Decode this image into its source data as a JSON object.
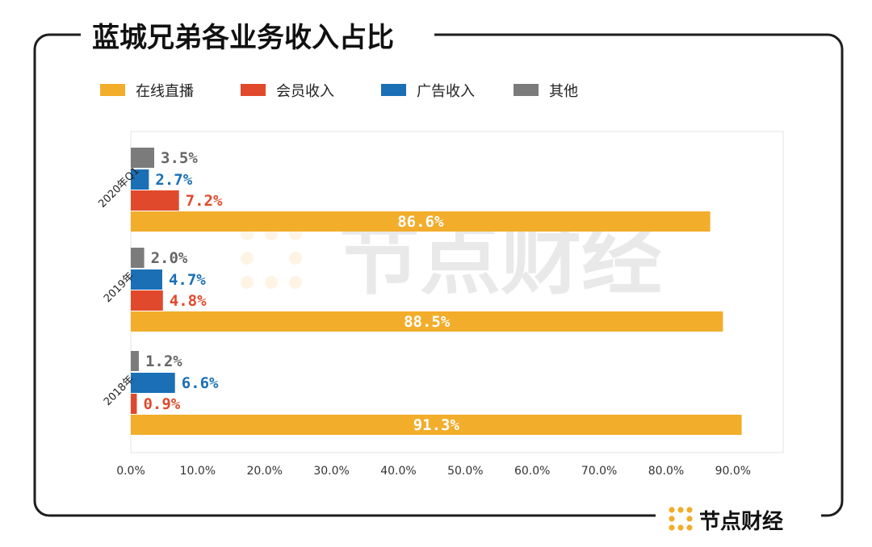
{
  "chart_data": {
    "type": "bar",
    "orientation": "horizontal",
    "title": "蓝城兄弟各业务收入占比",
    "categories": [
      "2020年Q1",
      "2019年",
      "2018年"
    ],
    "series": [
      {
        "name": "其他",
        "color": "#7b7b7b",
        "values": [
          3.5,
          2.0,
          1.2
        ],
        "labels": [
          "3.5%",
          "2.0%",
          "1.2%"
        ]
      },
      {
        "name": "广告收入",
        "color": "#1a6fb5",
        "values": [
          2.7,
          4.7,
          6.6
        ],
        "labels": [
          "2.7%",
          "4.7%",
          "6.6%"
        ]
      },
      {
        "name": "会员收入",
        "color": "#e0492b",
        "values": [
          7.2,
          4.8,
          0.9
        ],
        "labels": [
          "7.2%",
          "4.8%",
          "0.9%"
        ]
      },
      {
        "name": "在线直播",
        "color": "#f2ad2b",
        "values": [
          86.6,
          88.5,
          91.3
        ],
        "labels": [
          "86.6%",
          "88.5%",
          "91.3%"
        ]
      }
    ],
    "legend": {
      "position": "top-left",
      "items": [
        {
          "name": "在线直播",
          "color": "#f2ad2b"
        },
        {
          "name": "会员收入",
          "color": "#e0492b"
        },
        {
          "name": "广告收入",
          "color": "#1a6fb5"
        },
        {
          "name": "其他",
          "color": "#7b7b7b"
        }
      ]
    },
    "xlim": [
      0,
      97.5
    ],
    "xticks": [
      0,
      10,
      20,
      30,
      40,
      50,
      60,
      70,
      80,
      90
    ],
    "xtick_labels": [
      "0.0%",
      "10.0%",
      "20.0%",
      "30.0%",
      "40.0%",
      "50.0%",
      "60.0%",
      "70.0%",
      "80.0%",
      "90.0%"
    ],
    "grid": false
  },
  "brand": {
    "name": "节点财经",
    "watermark": "节点财经"
  },
  "colors": {
    "frame": "#1e1e1e",
    "axis_text": "#333333",
    "plot_border": "#e3e3e3"
  }
}
